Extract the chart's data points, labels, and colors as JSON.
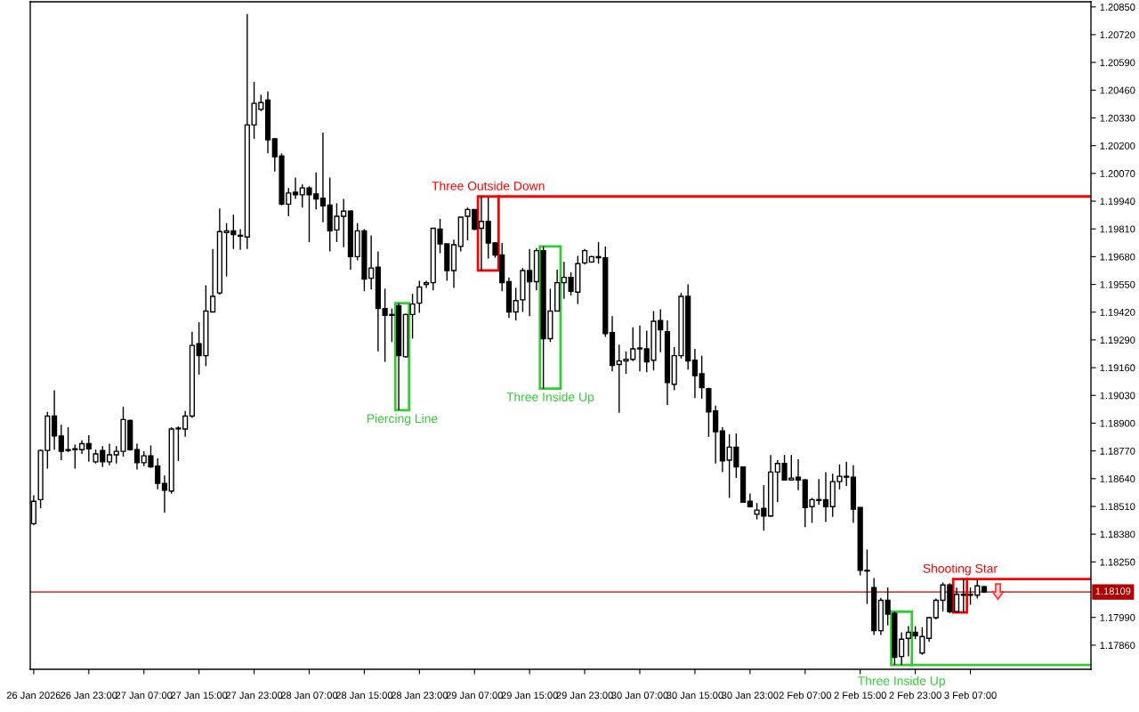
{
  "chart_data": {
    "type": "candlestick",
    "color": "#000000",
    "categories": [
      "26 Jan 2026",
      null,
      null,
      null,
      null,
      null,
      null,
      null,
      "26 Jan 23:00",
      null,
      null,
      null,
      null,
      null,
      null,
      null,
      "27 Jan 07:00",
      null,
      null,
      null,
      null,
      null,
      null,
      null,
      "27 Jan 15:00",
      null,
      null,
      null,
      null,
      null,
      null,
      null,
      "27 Jan 23:00",
      null,
      null,
      null,
      null,
      null,
      null,
      null,
      "28 Jan 07:00",
      null,
      null,
      null,
      null,
      null,
      null,
      null,
      "28 Jan 15:00",
      null,
      null,
      null,
      null,
      null,
      null,
      null,
      "28 Jan 23:00",
      null,
      null,
      null,
      null,
      null,
      null,
      null,
      "29 Jan 07:00",
      null,
      null,
      null,
      null,
      null,
      null,
      null,
      "29 Jan 15:00",
      null,
      null,
      null,
      null,
      null,
      null,
      null,
      "29 Jan 23:00",
      null,
      null,
      null,
      null,
      null,
      null,
      null,
      "30 Jan 07:00",
      null,
      null,
      null,
      null,
      null,
      null,
      null,
      "30 Jan 15:00",
      null,
      null,
      null,
      null,
      null,
      null,
      null,
      "30 Jan 23:00",
      null,
      null,
      null,
      null,
      null,
      null,
      null,
      "2 Feb 07:00",
      null,
      null,
      null,
      null,
      null,
      null,
      null,
      "2 Feb 15:00",
      null,
      null,
      null,
      null,
      null,
      null,
      null,
      "2 Feb 23:00",
      null,
      null,
      null,
      null,
      null,
      null,
      null,
      "3 Feb 07:00",
      null,
      null,
      null,
      null,
      null,
      null,
      null,
      null,
      null,
      null,
      null,
      null,
      null,
      null,
      null,
      null,
      null
    ],
    "ohlc": [
      [
        1.18429,
        1.18562,
        1.18421,
        1.18534
      ],
      [
        1.18542,
        1.18776,
        1.18501,
        1.18772
      ],
      [
        1.18772,
        1.18953,
        1.18687,
        1.18933
      ],
      [
        1.18933,
        1.19054,
        1.18776,
        1.1884
      ],
      [
        1.1884,
        1.18893,
        1.18727,
        1.18768
      ],
      [
        1.18772,
        1.18881,
        1.18764,
        1.18776
      ],
      [
        1.18776,
        1.188,
        1.18687,
        1.1878
      ],
      [
        1.18776,
        1.1882,
        1.18756,
        1.18804
      ],
      [
        1.18804,
        1.18844,
        1.18719,
        1.1878
      ],
      [
        1.18719,
        1.18776,
        1.18711,
        1.18756
      ],
      [
        1.18772,
        1.18792,
        1.18695,
        1.18719
      ],
      [
        1.18719,
        1.18804,
        1.18703,
        1.18752
      ],
      [
        1.18752,
        1.18792,
        1.18711,
        1.18768
      ],
      [
        1.18768,
        1.18977,
        1.18743,
        1.18917
      ],
      [
        1.18913,
        1.18917,
        1.18772,
        1.18776
      ],
      [
        1.18776,
        1.18804,
        1.18683,
        1.18715
      ],
      [
        1.18715,
        1.18768,
        1.18699,
        1.18747
      ],
      [
        1.18747,
        1.18796,
        1.18691,
        1.18695
      ],
      [
        1.18699,
        1.18735,
        1.1859,
        1.18618
      ],
      [
        1.18618,
        1.18655,
        1.18481,
        1.18586
      ],
      [
        1.18582,
        1.18881,
        1.1857,
        1.18873
      ],
      [
        1.18873,
        1.18885,
        1.18723,
        1.18877
      ],
      [
        1.18873,
        1.18957,
        1.18836,
        1.18933
      ],
      [
        1.18933,
        1.19328,
        1.18925,
        1.19264
      ],
      [
        1.19272,
        1.19373,
        1.19127,
        1.19216
      ],
      [
        1.19216,
        1.19546,
        1.19167,
        1.19425
      ],
      [
        1.19421,
        1.19716,
        1.19421,
        1.19494
      ],
      [
        1.1951,
        1.19906,
        1.19502,
        1.19797
      ],
      [
        1.19793,
        1.19837,
        1.19587,
        1.19801
      ],
      [
        1.19801,
        1.19877,
        1.19716,
        1.19784
      ],
      [
        1.1978,
        1.19809,
        1.19712,
        1.19776
      ],
      [
        1.19772,
        1.20817,
        1.19716,
        1.20297
      ],
      [
        1.20297,
        1.20499,
        1.20232,
        1.20398
      ],
      [
        1.2037,
        1.20438,
        1.20361,
        1.20402
      ],
      [
        1.20414,
        1.20454,
        1.20164,
        1.20228
      ],
      [
        1.20232,
        1.20236,
        1.20079,
        1.20148
      ],
      [
        1.20152,
        1.20164,
        1.1992,
        1.19926
      ],
      [
        1.19926,
        1.20002,
        1.19869,
        1.19978
      ],
      [
        1.19982,
        1.20051,
        1.1995,
        1.1997
      ],
      [
        1.1997,
        1.20018,
        1.1991,
        1.20002
      ],
      [
        1.20002,
        1.2001,
        1.19748,
        1.1997
      ],
      [
        1.19974,
        1.20075,
        1.19901,
        1.1995
      ],
      [
        1.19954,
        1.20261,
        1.19841,
        1.19918
      ],
      [
        1.19922,
        1.20051,
        1.19704,
        1.19801
      ],
      [
        1.19805,
        1.1993,
        1.19748,
        1.19869
      ],
      [
        1.19869,
        1.1995,
        1.19724,
        1.19893
      ],
      [
        1.19893,
        1.19897,
        1.19619,
        1.1968
      ],
      [
        1.1968,
        1.19837,
        1.19663,
        1.19801
      ],
      [
        1.19801,
        1.19809,
        1.19518,
        1.19575
      ],
      [
        1.19579,
        1.1978,
        1.19526,
        1.19627
      ],
      [
        1.19631,
        1.19704,
        1.19236,
        1.19437
      ],
      [
        1.19437,
        1.1953,
        1.19187,
        1.19405
      ],
      [
        1.19409,
        1.19437,
        1.1928,
        1.19405
      ],
      [
        1.1945,
        1.19462,
        1.18961,
        1.19216
      ],
      [
        1.19211,
        1.19413,
        1.19207,
        1.19409
      ],
      [
        1.19409,
        1.19506,
        1.19296,
        1.19458
      ],
      [
        1.19462,
        1.19567,
        1.19417,
        1.19538
      ],
      [
        1.1955,
        1.19567,
        1.19534,
        1.19558
      ],
      [
        1.19558,
        1.19813,
        1.19522,
        1.19813
      ],
      [
        1.19809,
        1.19857,
        1.19696,
        1.1974
      ],
      [
        1.1974,
        1.1974,
        1.19567,
        1.19615
      ],
      [
        1.19615,
        1.1976,
        1.19534,
        1.19736
      ],
      [
        1.19728,
        1.19865,
        1.19704,
        1.19865
      ],
      [
        1.19869,
        1.1991,
        1.19756,
        1.19901
      ],
      [
        1.19901,
        1.19901,
        1.19805,
        1.19809
      ],
      [
        1.19813,
        1.19962,
        1.19615,
        1.19845
      ],
      [
        1.19845,
        1.19958,
        1.19671,
        1.19744
      ],
      [
        1.19744,
        1.19748,
        1.19675,
        1.19688
      ],
      [
        1.19688,
        1.19744,
        1.19518,
        1.19558
      ],
      [
        1.19563,
        1.19583,
        1.19393,
        1.19421
      ],
      [
        1.19421,
        1.19534,
        1.19381,
        1.19474
      ],
      [
        1.19478,
        1.19627,
        1.19421,
        1.19615
      ],
      [
        1.19615,
        1.19716,
        1.19401,
        1.19563
      ],
      [
        1.19563,
        1.1972,
        1.19522,
        1.19708
      ],
      [
        1.19708,
        1.19728,
        1.19062,
        1.19296
      ],
      [
        1.19296,
        1.1953,
        1.1928,
        1.19425
      ],
      [
        1.19425,
        1.19619,
        1.19425,
        1.19558
      ],
      [
        1.19558,
        1.19655,
        1.19482,
        1.19583
      ],
      [
        1.19583,
        1.19607,
        1.19498,
        1.19518
      ],
      [
        1.19514,
        1.19684,
        1.19458,
        1.19647
      ],
      [
        1.19651,
        1.19716,
        1.19643,
        1.19708
      ],
      [
        1.19655,
        1.19684,
        1.19651,
        1.1968
      ],
      [
        1.19675,
        1.19748,
        1.19647,
        1.1968
      ],
      [
        1.19675,
        1.19728,
        1.19304,
        1.1932
      ],
      [
        1.19324,
        1.19401,
        1.19143,
        1.19171
      ],
      [
        1.19175,
        1.19268,
        1.18949,
        1.19191
      ],
      [
        1.19191,
        1.19236,
        1.19131,
        1.19199
      ],
      [
        1.19199,
        1.19349,
        1.19191,
        1.19248
      ],
      [
        1.19252,
        1.19357,
        1.19143,
        1.19248
      ],
      [
        1.19248,
        1.19333,
        1.19139,
        1.19187
      ],
      [
        1.19195,
        1.19425,
        1.19147,
        1.19377
      ],
      [
        1.19381,
        1.19433,
        1.19232,
        1.19337
      ],
      [
        1.19328,
        1.19381,
        1.18985,
        1.1909
      ],
      [
        1.19082,
        1.19256,
        1.19054,
        1.19216
      ],
      [
        1.19216,
        1.1951,
        1.19203,
        1.19494
      ],
      [
        1.19494,
        1.1955,
        1.19151,
        1.19191
      ],
      [
        1.19195,
        1.19248,
        1.19018,
        1.19123
      ],
      [
        1.19131,
        1.19216,
        1.19014,
        1.19066
      ],
      [
        1.19062,
        1.19066,
        1.18836,
        1.18953
      ],
      [
        1.18957,
        1.18982,
        1.18711,
        1.1886
      ],
      [
        1.18864,
        1.18881,
        1.18671,
        1.18723
      ],
      [
        1.18727,
        1.18848,
        1.1855,
        1.18788
      ],
      [
        1.18788,
        1.18852,
        1.18643,
        1.18695
      ],
      [
        1.18695,
        1.18695,
        1.1853,
        1.1853
      ],
      [
        1.18534,
        1.1857,
        1.18505,
        1.18509
      ],
      [
        1.18473,
        1.18526,
        1.18449,
        1.18493
      ],
      [
        1.18501,
        1.1861,
        1.18396,
        1.18465
      ],
      [
        1.18465,
        1.18751,
        1.18461,
        1.18671
      ],
      [
        1.18671,
        1.18727,
        1.1853,
        1.18711
      ],
      [
        1.18711,
        1.18751,
        1.18634,
        1.18634
      ],
      [
        1.18634,
        1.18751,
        1.18634,
        1.18643
      ],
      [
        1.18647,
        1.18731,
        1.18586,
        1.18634
      ],
      [
        1.18634,
        1.18638,
        1.18413,
        1.18505
      ],
      [
        1.18509,
        1.1855,
        1.18433,
        1.18542
      ],
      [
        1.18542,
        1.18638,
        1.18517,
        1.18538
      ],
      [
        1.18542,
        1.18671,
        1.18437,
        1.18509
      ],
      [
        1.18509,
        1.18663,
        1.18461,
        1.18626
      ],
      [
        1.18626,
        1.18707,
        1.1859,
        1.18651
      ],
      [
        1.18647,
        1.18719,
        1.18606,
        1.18651
      ],
      [
        1.18647,
        1.18703,
        1.18433,
        1.18497
      ],
      [
        1.18505,
        1.18505,
        1.18187,
        1.18211
      ],
      [
        1.18211,
        1.18308,
        1.18053,
        1.18207
      ],
      [
        1.1813,
        1.18174,
        1.17908,
        1.17928
      ],
      [
        1.17928,
        1.18082,
        1.17908,
        1.1807
      ],
      [
        1.1807,
        1.1813,
        1.17953,
        1.18005
      ],
      [
        1.18009,
        1.18017,
        1.17767,
        1.17803
      ],
      [
        1.17807,
        1.1792,
        1.17767,
        1.17888
      ],
      [
        1.17892,
        1.17949,
        1.17807,
        1.1792
      ],
      [
        1.1792,
        1.17949,
        1.17888,
        1.17904
      ],
      [
        1.17823,
        1.17944,
        1.17815,
        1.179
      ],
      [
        1.17892,
        1.17993,
        1.17876,
        1.17989
      ],
      [
        1.17989,
        1.18078,
        1.17981,
        1.1807
      ],
      [
        1.1807,
        1.18154,
        1.18017,
        1.18142
      ],
      [
        1.18142,
        1.1815,
        1.18009,
        1.18017
      ],
      [
        1.18017,
        1.1813,
        1.18013,
        1.18098
      ],
      [
        1.18094,
        1.1817,
        1.18013,
        1.18098
      ],
      [
        1.18098,
        1.1813,
        1.18049,
        1.18094
      ],
      [
        1.18094,
        1.18166,
        1.18078,
        1.18138
      ],
      [
        1.18134,
        1.18138,
        1.18105,
        1.18109
      ],
      null,
      null,
      null,
      null,
      null,
      null,
      null,
      null,
      null,
      null,
      null,
      null,
      null,
      null,
      null
    ],
    "annotations": [
      "Piercing Line",
      "Three Outside Down",
      "Three Inside Up",
      "Three Inside Up",
      "Shooting Star"
    ],
    "ref_lines": [
      {
        "axis": "y",
        "value": 1.19962,
        "color": "#ff0000"
      },
      {
        "axis": "y",
        "value": 1.17767,
        "color": "#32cd32"
      },
      {
        "axis": "y",
        "value": 1.1817,
        "color": "#ff0000"
      },
      {
        "axis": "y",
        "value": 1.18109,
        "label": "1.18109",
        "color": "#b00000"
      }
    ],
    "ylim": [
      1.17747,
      1.20874
    ],
    "yticks": [
      {
        "value": 1.2085,
        "label": "1.20850"
      },
      {
        "value": 1.2072,
        "label": "1.20720"
      },
      {
        "value": 1.2059,
        "label": "1.20590"
      },
      {
        "value": 1.2046,
        "label": "1.20460"
      },
      {
        "value": 1.2033,
        "label": "1.20330"
      },
      {
        "value": 1.202,
        "label": "1.20200"
      },
      {
        "value": 1.2007,
        "label": "1.20070"
      },
      {
        "value": 1.1994,
        "label": "1.19940"
      },
      {
        "value": 1.1981,
        "label": "1.19810"
      },
      {
        "value": 1.1968,
        "label": "1.19680"
      },
      {
        "value": 1.1955,
        "label": "1.19550"
      },
      {
        "value": 1.1942,
        "label": "1.19420"
      },
      {
        "value": 1.1929,
        "label": "1.19290"
      },
      {
        "value": 1.1916,
        "label": "1.19160"
      },
      {
        "value": 1.1903,
        "label": "1.19030"
      },
      {
        "value": 1.189,
        "label": "1.18900"
      },
      {
        "value": 1.1877,
        "label": "1.18770"
      },
      {
        "value": 1.1864,
        "label": "1.18640"
      },
      {
        "value": 1.1851,
        "label": "1.18510"
      },
      {
        "value": 1.1838,
        "label": "1.18380"
      },
      {
        "value": 1.1825,
        "label": "1.18250"
      },
      {
        "value": 1.1799,
        "label": "1.17990"
      },
      {
        "value": 1.1786,
        "label": "1.17860"
      }
    ]
  }
}
